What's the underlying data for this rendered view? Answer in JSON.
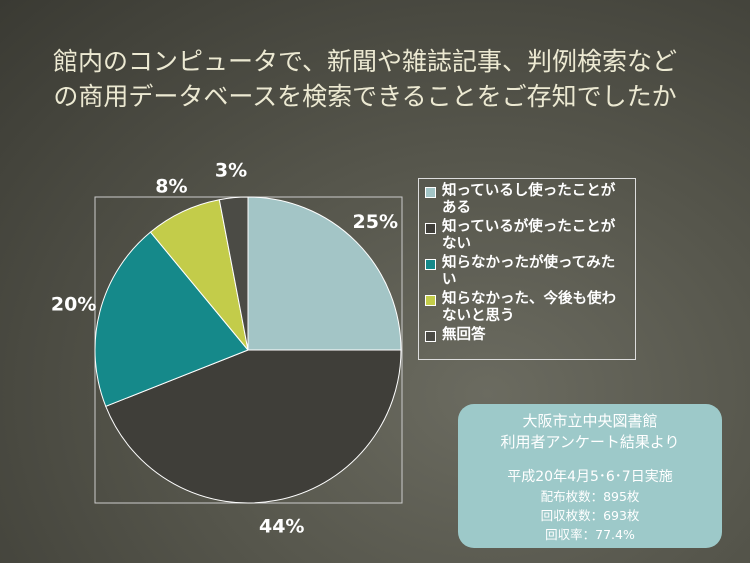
{
  "chart_data": {
    "type": "pie",
    "title": [
      "館内のコンピュータで、新聞や雑誌記事、判例検索など",
      "の商用データベースを検索できることをご存知でしたか"
    ],
    "categories": [
      "知っているし使ったことがある",
      "知っているが使ったことがない",
      "知らなかったが使ってみたい",
      "知らなかった、今後も使わないと思う",
      "無回答"
    ],
    "values": [
      25,
      44,
      20,
      8,
      3
    ],
    "value_labels": [
      "25%",
      "44%",
      "20%",
      "8%",
      "3%"
    ],
    "colors": [
      "#a3c5c6",
      "#3f3e39",
      "#15898a",
      "#c3cc4a",
      "#4b4b45"
    ],
    "legend": "right",
    "note": {
      "lines": [
        "大阪市立中央図書館",
        "利用者アンケート結果より"
      ],
      "date": "平成20年4月5･6･7日実施",
      "details": [
        "配布枚数：895枚",
        "回収枚数：693枚",
        "回収率：77.4%"
      ]
    }
  }
}
